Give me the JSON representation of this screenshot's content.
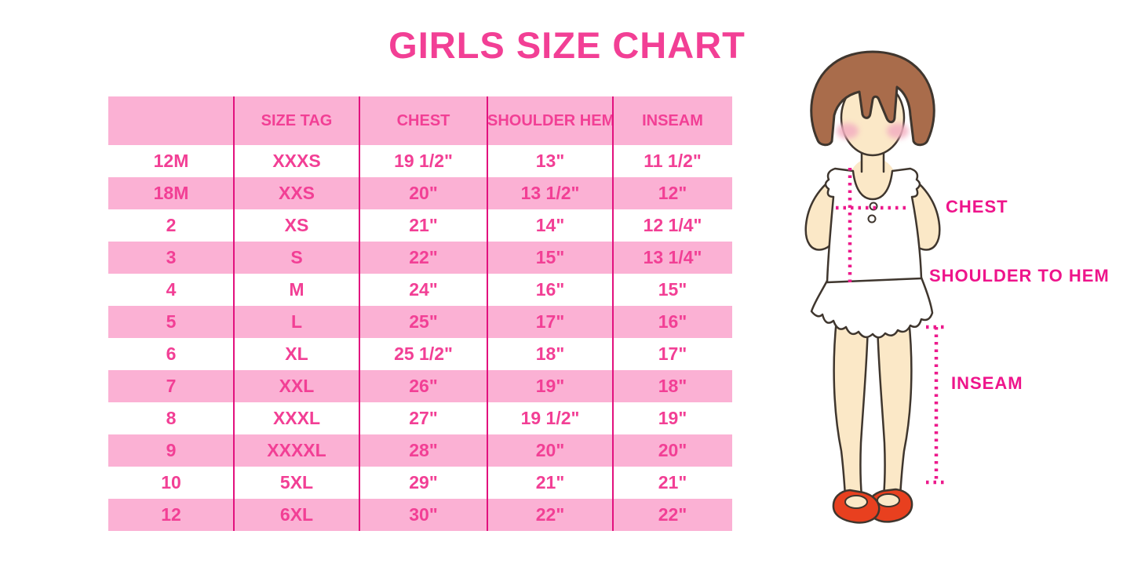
{
  "title": "GIRLS SIZE CHART",
  "size_table": {
    "columns": [
      "",
      "SIZE TAG",
      "CHEST",
      "SHOULDER HEM",
      "INSEAM"
    ],
    "rows": [
      [
        "12M",
        "XXXS",
        "19 1/2\"",
        "13\"",
        "11 1/2\""
      ],
      [
        "18M",
        "XXS",
        "20\"",
        "13 1/2\"",
        "12\""
      ],
      [
        "2",
        "XS",
        "21\"",
        "14\"",
        "12 1/4\""
      ],
      [
        "3",
        "S",
        "22\"",
        "15\"",
        "13 1/4\""
      ],
      [
        "4",
        "M",
        "24\"",
        "16\"",
        "15\""
      ],
      [
        "5",
        "L",
        "25\"",
        "17\"",
        "16\""
      ],
      [
        "6",
        "XL",
        "25 1/2\"",
        "18\"",
        "17\""
      ],
      [
        "7",
        "XXL",
        "26\"",
        "19\"",
        "18\""
      ],
      [
        "8",
        "XXXL",
        "27\"",
        "19 1/2\"",
        "19\""
      ],
      [
        "9",
        "XXXXL",
        "28\"",
        "20\"",
        "20\""
      ],
      [
        "10",
        "5XL",
        "29\"",
        "21\"",
        "21\""
      ],
      [
        "12",
        "6XL",
        "30\"",
        "22\"",
        "22\""
      ]
    ]
  },
  "figure": {
    "labels": {
      "chest": "CHEST",
      "shoulder_to_hem": "SHOULDER TO HEM",
      "inseam": "INSEAM"
    }
  },
  "colors": {
    "title_pink": "#F23F95",
    "row_stripe_pink": "#FBB1D4",
    "column_divider_magenta": "#E2117E",
    "cell_text_pink": "#F23F95",
    "measure_label_magenta": "#EE148B",
    "dotted_line_magenta": "#EC1A8C",
    "hair_brown": "#A96C4B",
    "skin_tone": "#FBE8C7",
    "blush_pink": "#F3AFC1",
    "shoe_red": "#E8401F",
    "outline_dark": "#3F362E"
  }
}
